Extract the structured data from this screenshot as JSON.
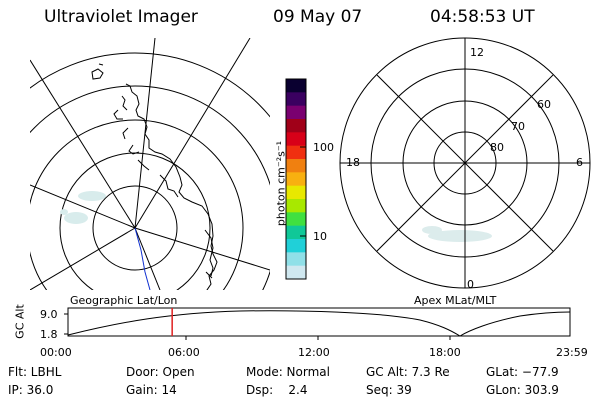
{
  "header": {
    "title": "Ultraviolet Imager",
    "date": "09 May 07",
    "time": "04:58:53 UT"
  },
  "geo_map": {
    "label": "Geographic Lat/Lon"
  },
  "apex_map": {
    "label": "Apex MLat/MLT",
    "mlt_labels": {
      "top": "12",
      "left": "18",
      "right": "6",
      "bottom": "0"
    },
    "mlat_labels": [
      "60",
      "70",
      "80"
    ]
  },
  "colorbar": {
    "unit_label": "photon cm⁻²s⁻¹",
    "tick_100": "100",
    "tick_10": "10",
    "colors": [
      "#0a0030",
      "#3a0060",
      "#7a0070",
      "#a00018",
      "#d80018",
      "#f03010",
      "#f08010",
      "#f8b010",
      "#e8e800",
      "#a8e800",
      "#40e040",
      "#10c898",
      "#20d0d8",
      "#90e0e8",
      "#d0e8f0"
    ]
  },
  "altitude_plot": {
    "ylabel": "GC Alt",
    "y_max": "9.0",
    "y_min": "1.8",
    "x_ticks": [
      "00:00",
      "06:00",
      "12:00",
      "18:00",
      "23:59"
    ],
    "current_time_hours": 4.98
  },
  "info": {
    "flt": "Flt: LBHL",
    "ip": "IP: 36.0",
    "door": "Door: Open",
    "gain": "Gain: 14",
    "mode": "Mode: Normal",
    "dsp": "Dsp:    2.4",
    "gc_alt": "GC Alt: 7.3 Re",
    "seq": "Seq: 39",
    "glat": "GLat: −77.9",
    "glon": "GLon: 303.9"
  }
}
